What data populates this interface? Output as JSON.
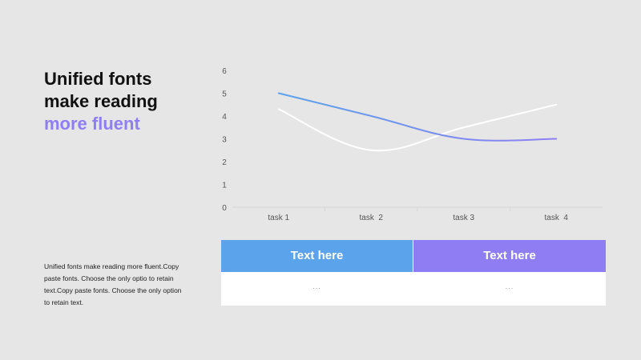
{
  "headline": {
    "line1": "Unified fonts",
    "line2": "make reading",
    "line3": "more fluent"
  },
  "description": "Unified fonts make reading more fluent.Copy paste fonts. Choose the only optio to retain text.Copy paste  fonts. Choose the only option to retain text.",
  "colors": {
    "background": "#e6e6e6",
    "accent_purple": "#8f7ef3",
    "accent_blue": "#5ba3ea",
    "line_white": "#ffffff"
  },
  "chart_data": {
    "type": "line",
    "categories": [
      "task 1",
      "task  2",
      "task 3",
      "task  4"
    ],
    "ylim": [
      0,
      6
    ],
    "yticks": [
      "0",
      "1",
      "2",
      "3",
      "4",
      "5",
      "6"
    ],
    "title": "",
    "xlabel": "",
    "ylabel": "",
    "grid": false,
    "series": [
      {
        "values": [
          5.0,
          4.0,
          3.0,
          3.0
        ],
        "color_start": "#5ba3ea",
        "color_end": "#8f7ef3"
      },
      {
        "values": [
          4.3,
          2.5,
          3.5,
          4.5
        ],
        "color_start": "#ffffff",
        "color_end": "#ffffff"
      }
    ]
  },
  "table": {
    "headers": [
      "Text here",
      "Text here"
    ],
    "header_colors": [
      "#5ba3ea",
      "#8f7ef3"
    ],
    "cells": [
      "...",
      "..."
    ]
  }
}
